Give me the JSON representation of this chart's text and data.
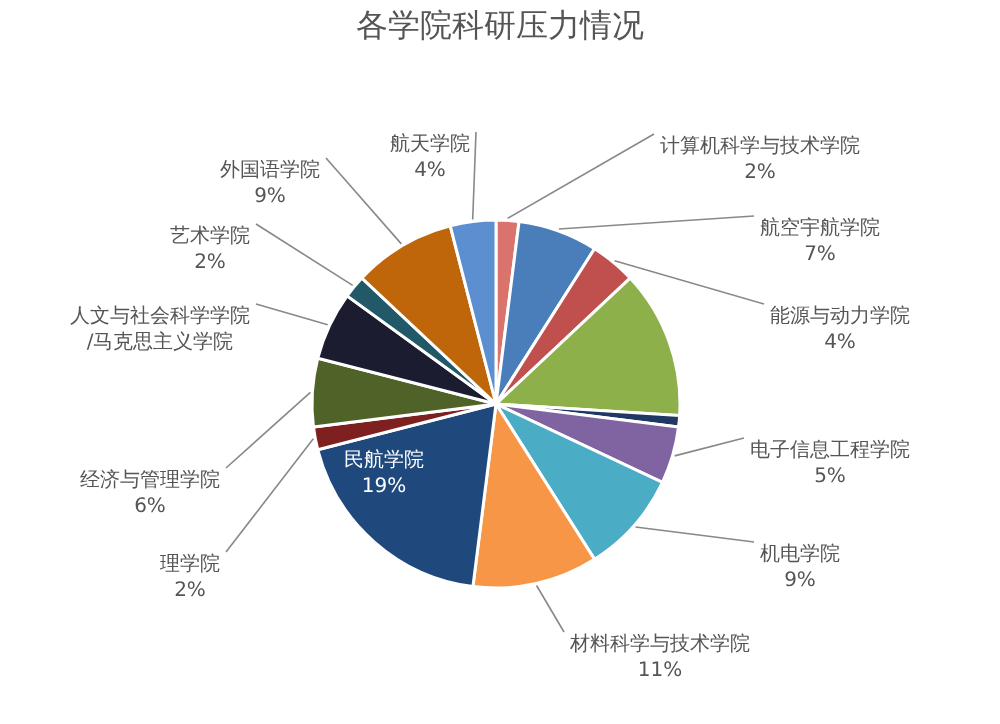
{
  "chart_data": {
    "type": "pie",
    "title": "各学院科研压力情况",
    "categories": [
      "计算机科学与技术学院",
      "航空宇航学院",
      "能源与动力学院",
      null,
      null,
      "电子信息工程学院",
      "机电学院",
      "材料科学与技术学院",
      "民航学院",
      "理学院",
      "经济与管理学院",
      "人文与社会科学学院/马克思主义学院",
      "艺术学院",
      "外国语学院",
      "航天学院"
    ],
    "values": [
      2,
      7,
      4,
      13,
      1,
      5,
      9,
      11,
      19,
      2,
      6,
      6,
      2,
      9,
      4
    ],
    "value_labels": [
      "2%",
      "7%",
      "4%",
      null,
      null,
      "5%",
      "9%",
      "11%",
      "19%",
      "2%",
      "6%",
      null,
      "2%",
      "9%",
      "4%"
    ],
    "colors": [
      "#d9736b",
      "#4a7ebb",
      "#c0504d",
      "#8db04a",
      "#1f3864",
      "#8064a2",
      "#4bacc6",
      "#f79646",
      "#1f497d",
      "#7f2020",
      "#4f6228",
      "#1c1c30",
      "#215968",
      "#c0660a",
      "#5b8fd0"
    ]
  }
}
